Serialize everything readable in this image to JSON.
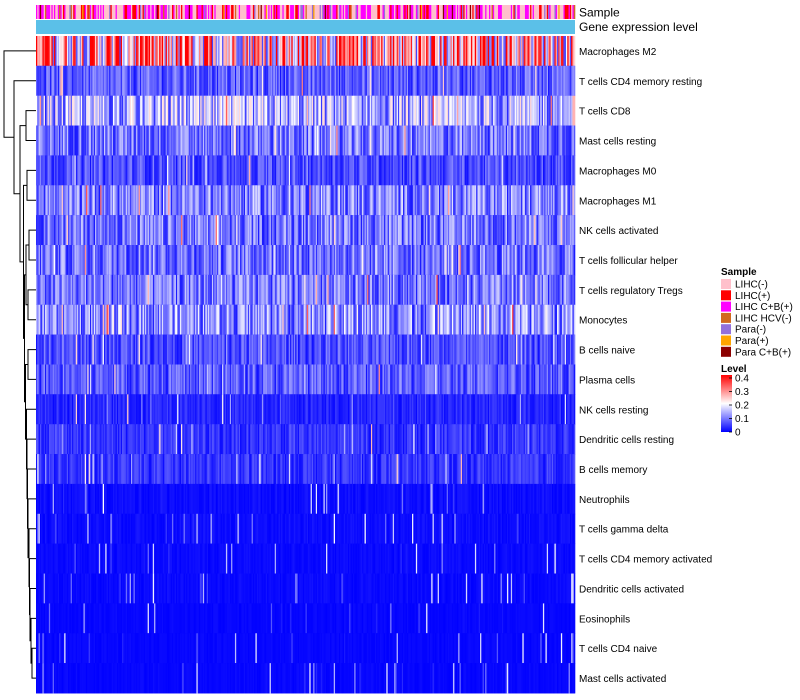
{
  "chart_data": {
    "type": "heatmap",
    "title": "",
    "annotation_tracks": [
      "Sample",
      "Gene expression level"
    ],
    "rows": [
      "Macrophages M2",
      "T cells CD4 memory resting",
      "T cells CD8",
      "Mast cells resting",
      "Macrophages M0",
      "Macrophages M1",
      "NK cells activated",
      "T cells follicular helper",
      "T cells regulatory  Tregs",
      "Monocytes",
      "B cells naive",
      "Plasma cells",
      "NK cells resting",
      "Dendritic cells resting",
      "B cells memory",
      "Neutrophils",
      "T cells gamma delta",
      "T cells CD4 memory activated",
      "Dendritic cells activated",
      "Eosinophils",
      "T cells CD4 naive",
      "Mast cells activated"
    ],
    "row_mean_levels": [
      0.26,
      0.07,
      0.13,
      0.09,
      0.06,
      0.1,
      0.09,
      0.09,
      0.09,
      0.11,
      0.06,
      0.07,
      0.03,
      0.04,
      0.04,
      0.02,
      0.02,
      0.015,
      0.015,
      0.01,
      0.01,
      0.01
    ],
    "sample_legend": {
      "title": "Sample",
      "entries": [
        {
          "label": "LIHC(-)",
          "color": "#ffc0cb"
        },
        {
          "label": "LIHC(+)",
          "color": "#ff0000"
        },
        {
          "label": "LIHC C+B(+)",
          "color": "#ff00ff"
        },
        {
          "label": "LIHC HCV(-)",
          "color": "#d2691e"
        },
        {
          "label": "Para(-)",
          "color": "#9370db"
        },
        {
          "label": "Para(+)",
          "color": "#ffa500"
        },
        {
          "label": "Para C+B(+)",
          "color": "#8b0000"
        }
      ]
    },
    "level_legend": {
      "title": "Level",
      "ticks": [
        "0.4",
        "0.3",
        "0.2",
        "0.1",
        "0"
      ],
      "range": [
        0,
        0.4
      ],
      "colors": [
        "#0000ff",
        "#ffffff",
        "#ff0000"
      ]
    },
    "expression_track_color": "#5bc0e8"
  }
}
